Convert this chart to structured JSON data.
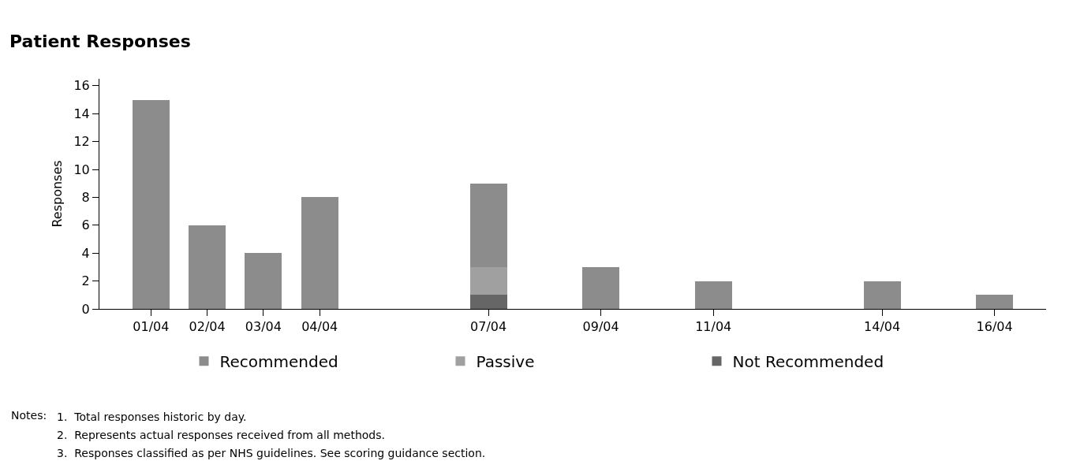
{
  "chart_data": {
    "type": "bar",
    "title": "Patient Responses",
    "ylabel": "Responses",
    "stacked": true,
    "x": [
      "--04-01",
      "--04-02",
      "--04-03",
      "--04-04",
      "--04-07",
      "--04-09",
      "--04-11",
      "--04-14",
      "--04-16"
    ],
    "series": [
      {
        "name": "Not Recommended",
        "color": "#666666",
        "values": [
          null,
          null,
          null,
          null,
          1,
          null,
          null,
          null,
          null
        ]
      },
      {
        "name": "Passive",
        "color": "#a0a0a0",
        "values": [
          null,
          null,
          null,
          null,
          2,
          null,
          null,
          null,
          null
        ]
      },
      {
        "name": "Recommended",
        "color": "#8c8c8c",
        "values": [
          15,
          6,
          4,
          8,
          6,
          3,
          2,
          2,
          1
        ]
      }
    ],
    "xlim": [
      "--03-31T02:00",
      "--04-16T22:00"
    ],
    "xticks": [
      {
        "value": "--04-01",
        "label": "01/04"
      },
      {
        "value": "--04-02",
        "label": "02/04"
      },
      {
        "value": "--04-03",
        "label": "03/04"
      },
      {
        "value": "--04-04",
        "label": "04/04"
      },
      {
        "value": "--04-07",
        "label": "07/04"
      },
      {
        "value": "--04-09",
        "label": "09/04"
      },
      {
        "value": "--04-11",
        "label": "11/04"
      },
      {
        "value": "--04-14",
        "label": "14/04"
      },
      {
        "value": "--04-16",
        "label": "16/04"
      }
    ],
    "ylim": [
      0,
      16.5
    ],
    "yticks": [
      0,
      2,
      4,
      6,
      8,
      10,
      12,
      14,
      16
    ],
    "legend": "bottom",
    "annotations": [
      "Notes:",
      "1.  Total responses historic by day.",
      "2.  Represents actual responses received from all methods.",
      "3.  Responses classified as per NHS guidelines. See scoring guidance section."
    ]
  }
}
